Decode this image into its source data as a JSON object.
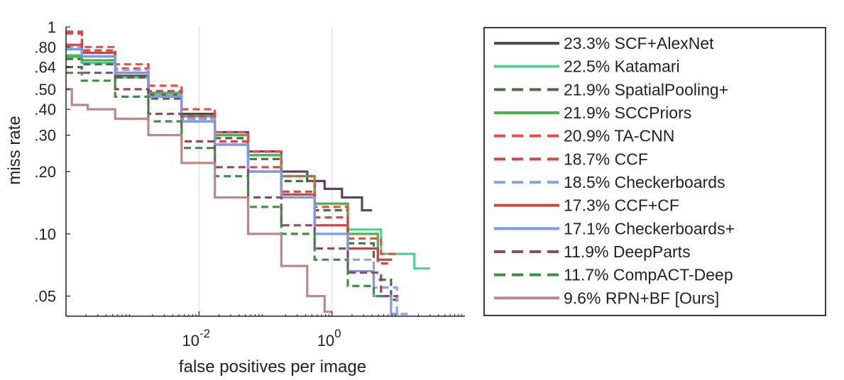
{
  "chart_data": {
    "type": "line",
    "title": "",
    "xlabel": "false positives per image",
    "ylabel": "miss rate",
    "x_scale": "log",
    "y_scale": "log",
    "xlim": [
      0.0001,
      100
    ],
    "ylim": [
      0.04,
      1
    ],
    "x_ticks": [
      {
        "value": 0.01,
        "base": "10",
        "exp": "-2"
      },
      {
        "value": 1,
        "base": "10",
        "exp": "0"
      }
    ],
    "y_ticks": [
      {
        "value": 1,
        "label": "1"
      },
      {
        "value": 0.8,
        "label": ".80"
      },
      {
        "value": 0.64,
        "label": ".64"
      },
      {
        "value": 0.5,
        "label": ".50"
      },
      {
        "value": 0.4,
        "label": ".40"
      },
      {
        "value": 0.3,
        "label": ".30"
      },
      {
        "value": 0.2,
        "label": ".20"
      },
      {
        "value": 0.1,
        "label": ".10"
      },
      {
        "value": 0.05,
        "label": ".05"
      }
    ],
    "grid": "x-major",
    "legend_position": "right",
    "series": [
      {
        "name": "23.3% SCF+AlexNet",
        "color": "#5e4659",
        "dash": "solid",
        "points": [
          [
            0.0001,
            0.72
          ],
          [
            0.0003,
            0.67
          ],
          [
            0.001,
            0.58
          ],
          [
            0.003,
            0.47
          ],
          [
            0.01,
            0.38
          ],
          [
            0.03,
            0.31
          ],
          [
            0.1,
            0.25
          ],
          [
            0.3,
            0.2
          ],
          [
            0.6,
            0.18
          ],
          [
            1,
            0.165
          ],
          [
            2,
            0.15
          ],
          [
            4,
            0.13
          ]
        ]
      },
      {
        "name": "22.5% Katamari",
        "color": "#52cf92",
        "dash": "solid",
        "points": [
          [
            0.0001,
            0.73
          ],
          [
            0.0003,
            0.67
          ],
          [
            0.001,
            0.57
          ],
          [
            0.003,
            0.46
          ],
          [
            0.01,
            0.37
          ],
          [
            0.03,
            0.3
          ],
          [
            0.1,
            0.24
          ],
          [
            0.3,
            0.19
          ],
          [
            1,
            0.14
          ],
          [
            3,
            0.105
          ],
          [
            10,
            0.08
          ],
          [
            30,
            0.068
          ]
        ]
      },
      {
        "name": "21.9% SpatialPooling+",
        "color": "#4a6d47",
        "dash": "dashed",
        "points": [
          [
            0.0001,
            0.7
          ],
          [
            0.0003,
            0.66
          ],
          [
            0.001,
            0.57
          ],
          [
            0.003,
            0.45
          ],
          [
            0.01,
            0.36
          ],
          [
            0.03,
            0.29
          ],
          [
            0.1,
            0.23
          ],
          [
            0.3,
            0.18
          ],
          [
            1,
            0.13
          ],
          [
            3,
            0.09
          ],
          [
            6,
            0.06
          ],
          [
            10,
            0.048
          ]
        ]
      },
      {
        "name": "21.9% SCCPriors",
        "color": "#4ab348",
        "dash": "solid",
        "points": [
          [
            0.0001,
            0.72
          ],
          [
            0.0003,
            0.69
          ],
          [
            0.001,
            0.6
          ],
          [
            0.003,
            0.48
          ],
          [
            0.01,
            0.37
          ],
          [
            0.03,
            0.3
          ],
          [
            0.1,
            0.24
          ],
          [
            0.3,
            0.19
          ],
          [
            1,
            0.14
          ],
          [
            3,
            0.1
          ],
          [
            8,
            0.075
          ]
        ]
      },
      {
        "name": "20.9% TA-CNN",
        "color": "#ef4a49",
        "dash": "dashed",
        "points": [
          [
            0.0001,
            0.95
          ],
          [
            0.0003,
            0.8
          ],
          [
            0.001,
            0.66
          ],
          [
            0.003,
            0.52
          ],
          [
            0.01,
            0.4
          ],
          [
            0.03,
            0.31
          ],
          [
            0.1,
            0.25
          ],
          [
            0.3,
            0.19
          ],
          [
            1,
            0.135
          ],
          [
            3,
            0.095
          ],
          [
            10,
            0.08
          ]
        ]
      },
      {
        "name": "18.7% CCF",
        "color": "#d0484c",
        "dash": "dashed",
        "points": [
          [
            0.0001,
            0.93
          ],
          [
            0.0003,
            0.77
          ],
          [
            0.001,
            0.63
          ],
          [
            0.003,
            0.49
          ],
          [
            0.01,
            0.37
          ],
          [
            0.03,
            0.28
          ],
          [
            0.1,
            0.21
          ],
          [
            0.3,
            0.16
          ],
          [
            1,
            0.12
          ],
          [
            3,
            0.085
          ],
          [
            8,
            0.072
          ]
        ]
      },
      {
        "name": "18.5% Checkerboards",
        "color": "#8aa6e6",
        "dash": "dashed",
        "points": [
          [
            0.0001,
            0.8
          ],
          [
            0.0003,
            0.75
          ],
          [
            0.001,
            0.62
          ],
          [
            0.003,
            0.47
          ],
          [
            0.01,
            0.36
          ],
          [
            0.03,
            0.27
          ],
          [
            0.1,
            0.2
          ],
          [
            0.3,
            0.155
          ],
          [
            1,
            0.11
          ],
          [
            3,
            0.075
          ],
          [
            6,
            0.055
          ],
          [
            15,
            0.041
          ]
        ]
      },
      {
        "name": "17.3% CCF+CF",
        "color": "#d3403e",
        "dash": "solid",
        "points": [
          [
            0.0001,
            0.82
          ],
          [
            0.0003,
            0.75
          ],
          [
            0.001,
            0.6
          ],
          [
            0.003,
            0.46
          ],
          [
            0.01,
            0.35
          ],
          [
            0.03,
            0.27
          ],
          [
            0.1,
            0.2
          ],
          [
            0.3,
            0.155
          ],
          [
            1,
            0.11
          ],
          [
            3,
            0.085
          ],
          [
            8,
            0.075
          ]
        ]
      },
      {
        "name": "17.1% Checkerboards+",
        "color": "#7d9ae0",
        "dash": "solid",
        "points": [
          [
            0.0001,
            0.78
          ],
          [
            0.0003,
            0.72
          ],
          [
            0.001,
            0.6
          ],
          [
            0.003,
            0.46
          ],
          [
            0.01,
            0.35
          ],
          [
            0.03,
            0.27
          ],
          [
            0.1,
            0.2
          ],
          [
            0.3,
            0.15
          ],
          [
            1,
            0.1
          ],
          [
            3,
            0.066
          ],
          [
            6,
            0.05
          ],
          [
            10,
            0.041
          ]
        ]
      },
      {
        "name": "11.9% DeepParts",
        "color": "#8a4a6b",
        "dash": "dashed",
        "points": [
          [
            0.0001,
            0.64
          ],
          [
            0.0003,
            0.6
          ],
          [
            0.001,
            0.5
          ],
          [
            0.003,
            0.38
          ],
          [
            0.01,
            0.28
          ],
          [
            0.03,
            0.21
          ],
          [
            0.1,
            0.15
          ],
          [
            0.3,
            0.11
          ],
          [
            1,
            0.085
          ],
          [
            3,
            0.065
          ],
          [
            10,
            0.05
          ]
        ]
      },
      {
        "name": "11.7% CompACT-Deep",
        "color": "#3e8f46",
        "dash": "dashed",
        "points": [
          [
            0.0001,
            0.6
          ],
          [
            0.0003,
            0.55
          ],
          [
            0.001,
            0.46
          ],
          [
            0.003,
            0.35
          ],
          [
            0.01,
            0.26
          ],
          [
            0.03,
            0.19
          ],
          [
            0.1,
            0.135
          ],
          [
            0.3,
            0.1
          ],
          [
            1,
            0.075
          ],
          [
            3,
            0.056
          ],
          [
            6,
            0.05
          ]
        ]
      },
      {
        "name": "9.6% RPN+BF [Ours]",
        "color": "#b98888",
        "dash": "solid",
        "points": [
          [
            0.0001,
            0.5
          ],
          [
            0.00015,
            0.42
          ],
          [
            0.0003,
            0.4
          ],
          [
            0.001,
            0.36
          ],
          [
            0.003,
            0.3
          ],
          [
            0.01,
            0.22
          ],
          [
            0.03,
            0.15
          ],
          [
            0.1,
            0.1
          ],
          [
            0.3,
            0.07
          ],
          [
            0.6,
            0.05
          ],
          [
            1,
            0.042
          ]
        ]
      }
    ]
  }
}
